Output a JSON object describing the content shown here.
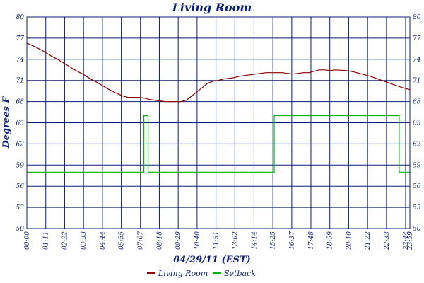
{
  "chart_data": {
    "type": "line",
    "title": "Living Room",
    "xlabel": "04/29/11 (EST)",
    "ylabel": "Degrees F",
    "x_unit": "minutes",
    "xlim": [
      0,
      1440
    ],
    "ylim": [
      50,
      80
    ],
    "grid": true,
    "legend_position": "bottom",
    "y_ticks": [
      50,
      53,
      56,
      59,
      62,
      65,
      68,
      71,
      74,
      77,
      80
    ],
    "x_ticks": [
      {
        "m": 0,
        "label": "00:00"
      },
      {
        "m": 71,
        "label": "01:11"
      },
      {
        "m": 142,
        "label": "02:22"
      },
      {
        "m": 213,
        "label": "03:33"
      },
      {
        "m": 284,
        "label": "04:44"
      },
      {
        "m": 355,
        "label": "05:55"
      },
      {
        "m": 427,
        "label": "07:07"
      },
      {
        "m": 498,
        "label": "08:18"
      },
      {
        "m": 569,
        "label": "09:29"
      },
      {
        "m": 640,
        "label": "10:40"
      },
      {
        "m": 711,
        "label": "11:51"
      },
      {
        "m": 782,
        "label": "13:02"
      },
      {
        "m": 854,
        "label": "14:14"
      },
      {
        "m": 925,
        "label": "15:25"
      },
      {
        "m": 996,
        "label": "16:37"
      },
      {
        "m": 1068,
        "label": "17:48"
      },
      {
        "m": 1139,
        "label": "18:59"
      },
      {
        "m": 1210,
        "label": "20:10"
      },
      {
        "m": 1281,
        "label": "21:22"
      },
      {
        "m": 1352,
        "label": "22:33"
      },
      {
        "m": 1424,
        "label": "23:44"
      },
      {
        "m": 1440,
        "label": "23:59"
      }
    ],
    "series": [
      {
        "name": "Living Room",
        "color": "#8b0000",
        "style": "line",
        "x": [
          0,
          30,
          60,
          90,
          120,
          150,
          180,
          210,
          240,
          270,
          300,
          330,
          360,
          380,
          400,
          420,
          440,
          460,
          480,
          500,
          520,
          540,
          560,
          580,
          600,
          620,
          640,
          660,
          680,
          700,
          720,
          740,
          760,
          780,
          800,
          840,
          880,
          900,
          920,
          960,
          980,
          1000,
          1020,
          1040,
          1060,
          1080,
          1100,
          1120,
          1140,
          1160,
          1200,
          1230,
          1260,
          1290,
          1320,
          1350,
          1380,
          1410,
          1440
        ],
        "y": [
          76.3,
          75.8,
          75.2,
          74.5,
          73.9,
          73.2,
          72.5,
          71.9,
          71.2,
          70.6,
          69.9,
          69.3,
          68.8,
          68.6,
          68.6,
          68.6,
          68.5,
          68.3,
          68.2,
          68.1,
          68.0,
          68.0,
          68.0,
          68.0,
          68.2,
          68.8,
          69.4,
          70.0,
          70.6,
          70.9,
          71.0,
          71.2,
          71.3,
          71.4,
          71.6,
          71.8,
          72.0,
          72.1,
          72.1,
          72.1,
          72.0,
          71.9,
          72.0,
          72.1,
          72.1,
          72.3,
          72.5,
          72.5,
          72.4,
          72.5,
          72.4,
          72.2,
          71.9,
          71.6,
          71.2,
          70.8,
          70.4,
          70.0,
          69.7
        ]
      },
      {
        "name": "Setback",
        "color": "#00b400",
        "style": "step",
        "x": [
          0,
          440,
          440,
          456,
          456,
          930,
          930,
          1400,
          1400,
          1440
        ],
        "y": [
          58,
          58,
          66,
          66,
          58,
          58,
          66,
          66,
          58,
          58
        ]
      }
    ]
  }
}
